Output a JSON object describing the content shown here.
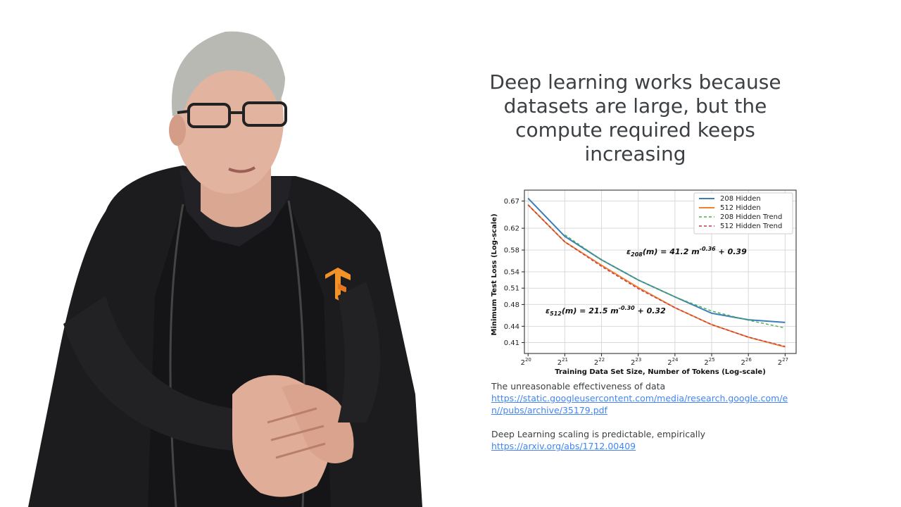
{
  "slide": {
    "title_lines": [
      "Deep learning works because",
      "datasets are large, but the",
      "compute required keeps",
      "increasing"
    ],
    "references": [
      {
        "title": "The unreasonable effectiveness of data",
        "url": "https://static.googleusercontent.com/media/research.google.com/en//pubs/archive/35179.pdf"
      },
      {
        "title": "Deep Learning scaling is predictable, empirically",
        "url": "https://arxiv.org/abs/1712.00409"
      }
    ]
  },
  "presenter": {
    "icon": "tensorflow-logo-icon"
  },
  "colors": {
    "title": "#3c4043",
    "link": "#4285f4",
    "series_208": "#3a7fb8",
    "series_512": "#f08030",
    "trend_208": "#4caf50",
    "trend_512": "#c0394b"
  },
  "chart_data": {
    "type": "line",
    "xlabel": "Training Data Set Size, Number of Tokens (Log-scale)",
    "ylabel": "Minimum Test Loss (Log-scale)",
    "x_ticks": [
      20,
      21,
      22,
      23,
      24,
      25,
      26,
      27
    ],
    "x_tick_base": "2",
    "y_ticks": [
      "0.67",
      "0.62",
      "0.58",
      "0.54",
      "0.51",
      "0.48",
      "0.44",
      "0.41"
    ],
    "y_tick_values": [
      0.67,
      0.62,
      0.58,
      0.54,
      0.51,
      0.48,
      0.44,
      0.41
    ],
    "xlim": [
      19.9,
      27.3
    ],
    "ylim": [
      0.39,
      0.69
    ],
    "grid": true,
    "legend_position": "top-right",
    "series": [
      {
        "name": "208 Hidden",
        "style": "solid",
        "x": [
          20,
          21,
          22,
          23,
          24,
          25,
          26,
          27
        ],
        "y": [
          0.675,
          0.605,
          0.562,
          0.525,
          0.494,
          0.464,
          0.452,
          0.447
        ]
      },
      {
        "name": "512 Hidden",
        "style": "solid",
        "x": [
          20,
          21,
          22,
          23,
          24,
          25,
          26,
          27
        ],
        "y": [
          0.663,
          0.595,
          0.552,
          0.511,
          0.474,
          0.443,
          0.42,
          0.402
        ]
      },
      {
        "name": "208 Hidden Trend",
        "style": "dashed",
        "x": [
          21,
          22,
          23,
          24,
          25,
          26,
          27
        ],
        "y": [
          0.608,
          0.562,
          0.525,
          0.494,
          0.468,
          0.451,
          0.437
        ]
      },
      {
        "name": "512 Hidden Trend",
        "style": "dashed",
        "x": [
          20,
          21,
          22,
          23,
          24,
          25,
          26,
          27
        ],
        "y": [
          0.663,
          0.595,
          0.55,
          0.509,
          0.474,
          0.443,
          0.42,
          0.403
        ]
      }
    ],
    "annotations": [
      {
        "text_prefix": "ε",
        "subscript": "208",
        "text_mid": "(m) = 41.2 m",
        "superscript": "-0.36",
        "text_suffix": " + 0.39"
      },
      {
        "text_prefix": "ε",
        "subscript": "512",
        "text_mid": "(m) = 21.5 m",
        "superscript": "-0.30",
        "text_suffix": " + 0.32"
      }
    ]
  }
}
